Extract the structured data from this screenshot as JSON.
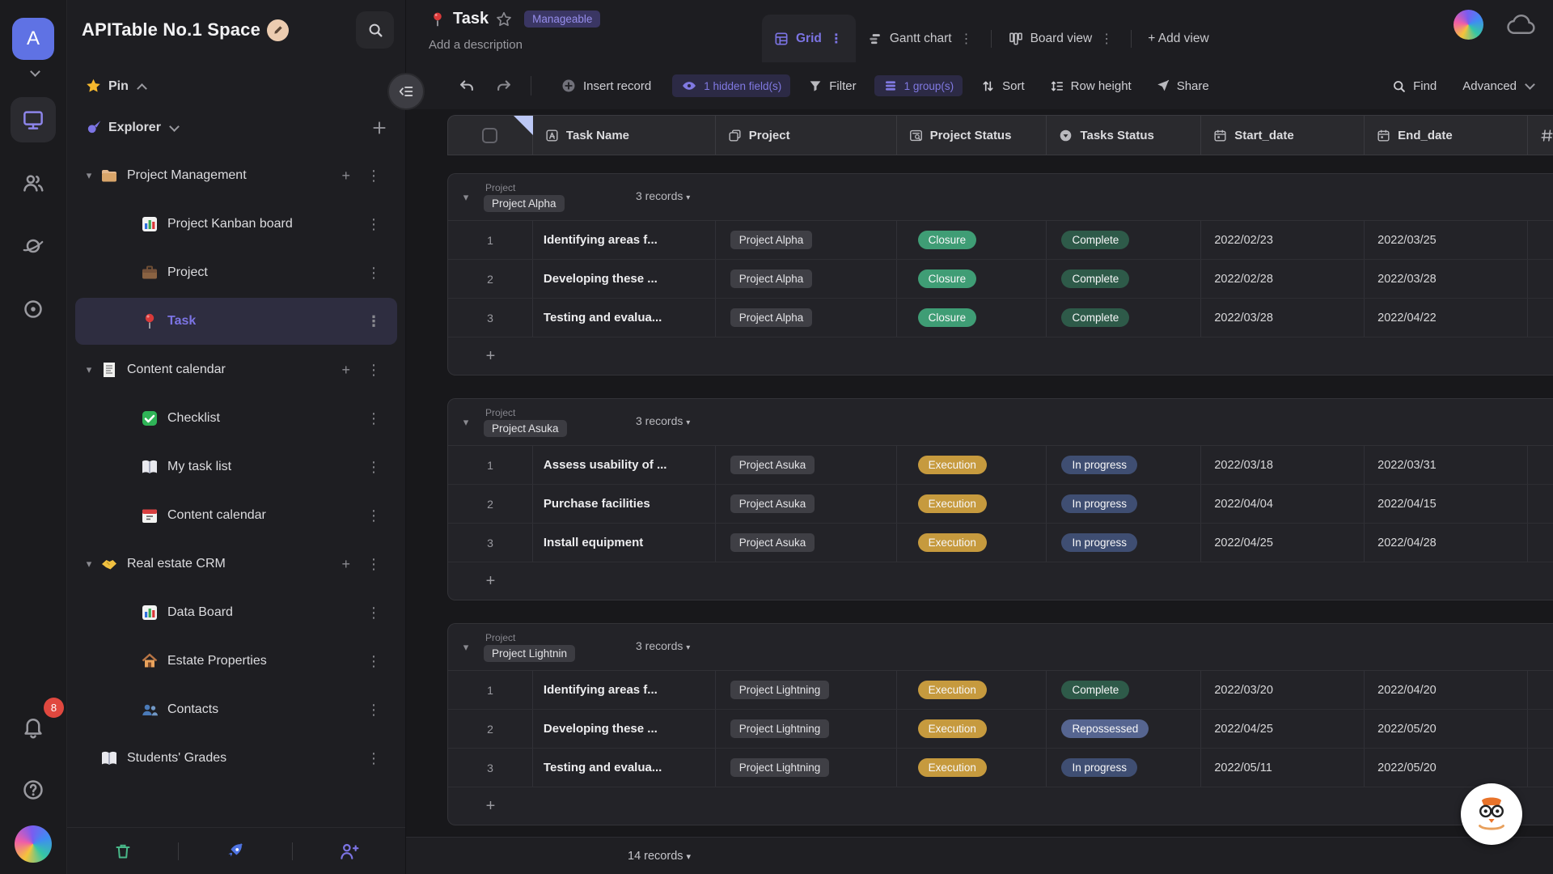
{
  "rail": {
    "avatar_letter": "A",
    "notification_count": "8",
    "icons": [
      "monitor",
      "users",
      "planet",
      "target",
      "bell",
      "help"
    ]
  },
  "sidebar": {
    "space_title": "APITable No.1 Space",
    "search_icon": "search",
    "pin_label": "Pin",
    "explorer_label": "Explorer",
    "tree": [
      {
        "icon": "folder",
        "label": "Project Management",
        "type": "folder"
      },
      {
        "icon": "chart",
        "label": "Project Kanban board",
        "type": "child"
      },
      {
        "icon": "briefcase",
        "label": "Project",
        "type": "child"
      },
      {
        "icon": "pin",
        "label": "Task",
        "type": "child",
        "selected": true
      },
      {
        "icon": "receipt",
        "label": "Content calendar",
        "type": "folder"
      },
      {
        "icon": "check",
        "label": "Checklist",
        "type": "child"
      },
      {
        "icon": "book",
        "label": "My task list",
        "type": "child"
      },
      {
        "icon": "calendar",
        "label": "Content calendar",
        "type": "child"
      },
      {
        "icon": "handshake",
        "label": "Real estate CRM",
        "type": "folder"
      },
      {
        "icon": "chart",
        "label": "Data Board",
        "type": "child"
      },
      {
        "icon": "house",
        "label": "Estate Properties",
        "type": "child"
      },
      {
        "icon": "users-blue",
        "label": "Contacts",
        "type": "child"
      },
      {
        "icon": "book",
        "label": "Students' Grades",
        "type": "root"
      }
    ],
    "footer_icons": [
      "trash",
      "rocket",
      "invite"
    ]
  },
  "header": {
    "doc_icon": "pin",
    "title": "Task",
    "permission_badge": "Manageable",
    "description_placeholder": "Add a description",
    "tabs": [
      {
        "label": "Grid",
        "icon": "grid",
        "active": true
      },
      {
        "label": "Gantt chart",
        "icon": "gantt",
        "active": false
      },
      {
        "label": "Board view",
        "icon": "board",
        "active": false
      }
    ],
    "add_view_label": "+ Add view"
  },
  "toolbar": {
    "insert_record": "Insert record",
    "hidden_fields": "1 hidden field(s)",
    "filter": "Filter",
    "group": "1 group(s)",
    "sort": "Sort",
    "row_height": "Row height",
    "share": "Share",
    "find": "Find",
    "advanced": "Advanced"
  },
  "table": {
    "columns": [
      {
        "icon": "f-text",
        "label": "Task Name"
      },
      {
        "icon": "f-link",
        "label": "Project"
      },
      {
        "icon": "f-lookup",
        "label": "Project Status"
      },
      {
        "icon": "f-select",
        "label": "Tasks Status"
      },
      {
        "icon": "f-date",
        "label": "Start_date"
      },
      {
        "icon": "f-date",
        "label": "End_date"
      },
      {
        "icon": "f-number",
        "label": ""
      }
    ],
    "group_field": "Project",
    "groups": [
      {
        "group_value": "Project Alpha",
        "records_label": "3 records",
        "rows": [
          {
            "num": "1",
            "task": "Identifying areas f...",
            "project": "Project Alpha",
            "project_status": "Closure",
            "tasks_status": "Complete",
            "start": "2022/02/23",
            "end": "2022/03/25"
          },
          {
            "num": "2",
            "task": "Developing these ...",
            "project": "Project Alpha",
            "project_status": "Closure",
            "tasks_status": "Complete",
            "start": "2022/02/28",
            "end": "2022/03/28"
          },
          {
            "num": "3",
            "task": "Testing and evalua...",
            "project": "Project Alpha",
            "project_status": "Closure",
            "tasks_status": "Complete",
            "start": "2022/03/28",
            "end": "2022/04/22"
          }
        ]
      },
      {
        "group_value": "Project Asuka",
        "records_label": "3 records",
        "rows": [
          {
            "num": "1",
            "task": "Assess usability of ...",
            "project": "Project Asuka",
            "project_status": "Execution",
            "tasks_status": "In progress",
            "start": "2022/03/18",
            "end": "2022/03/31"
          },
          {
            "num": "2",
            "task": "Purchase facilities",
            "project": "Project Asuka",
            "project_status": "Execution",
            "tasks_status": "In progress",
            "start": "2022/04/04",
            "end": "2022/04/15"
          },
          {
            "num": "3",
            "task": "Install equipment",
            "project": "Project Asuka",
            "project_status": "Execution",
            "tasks_status": "In progress",
            "start": "2022/04/25",
            "end": "2022/04/28"
          }
        ]
      },
      {
        "group_value": "Project Lightnin",
        "records_label": "3 records",
        "rows": [
          {
            "num": "1",
            "task": "Identifying areas f...",
            "project": "Project Lightning",
            "project_status": "Execution",
            "tasks_status": "Complete",
            "start": "2022/03/20",
            "end": "2022/04/20"
          },
          {
            "num": "2",
            "task": "Developing these ...",
            "project": "Project Lightning",
            "project_status": "Execution",
            "tasks_status": "Repossessed",
            "start": "2022/04/25",
            "end": "2022/05/20"
          },
          {
            "num": "3",
            "task": "Testing and evalua...",
            "project": "Project Lightning",
            "project_status": "Execution",
            "tasks_status": "In progress",
            "start": "2022/05/11",
            "end": "2022/05/20"
          }
        ]
      }
    ],
    "total_records": "14 records"
  },
  "colors": {
    "accent": "#7c74e4",
    "status": {
      "Closure": "#3f9d75",
      "Complete": "#2e5a49",
      "Execution": "#c69a3e",
      "In progress": "#3f4e72",
      "Repossessed": "#566590"
    }
  }
}
